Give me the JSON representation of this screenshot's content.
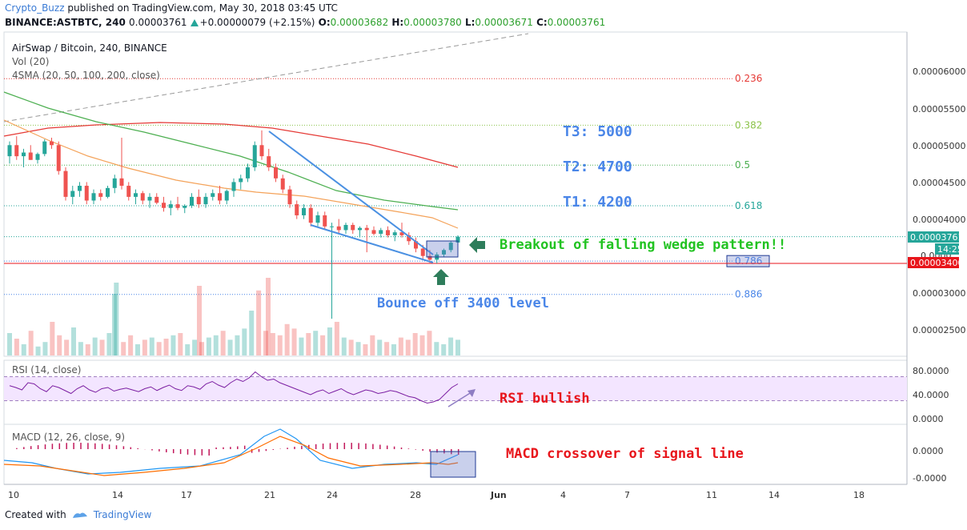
{
  "header": {
    "author": "Crypto_Buzz",
    "published": "published on TradingView.com, May 30, 2018 03:45 UTC",
    "symbol": "BINANCE:ASTBTC, 240",
    "last": "0.00003761",
    "change": "+0.00000079 (+2.15%)",
    "o_label": "O:",
    "o_val": "0.00003682",
    "h_label": "H:",
    "h_val": "0.00003780",
    "l_label": "L:",
    "l_val": "0.00003671",
    "c_label": "C:",
    "c_val": "0.00003761"
  },
  "footer": {
    "created_with": "Created with",
    "brand": "TradingView"
  },
  "colors": {
    "up": "#26a69a",
    "down": "#ef5350",
    "sma20": "#f4a259",
    "sma50": "#4caf50",
    "sma100": "#4caf50",
    "sma200": "#e53935",
    "wedge": "#4a90e2",
    "annotation_blue": "#4a86e8",
    "annotation_green": "#22c322",
    "annotation_red": "#e8151b",
    "arrow_green": "#2e7d5b",
    "rsi_band": "#f3e5ff",
    "rsi_line": "#7b1fa2",
    "macd_line": "#2196f3",
    "signal_line": "#ff6d00",
    "hist": "#c2185b"
  },
  "chart_data": {
    "type": "candlestick",
    "panes": {
      "main": {
        "legend": [
          "AirSwap / Bitcoin, 240, BINANCE",
          "Vol (20)",
          "4SMA (20, 50, 100, 200, close)"
        ],
        "y_ticks": [
          "0.00006000",
          "0.00005500",
          "0.00005000",
          "0.00004500",
          "0.00004000",
          "0.00003000",
          "0.00002500"
        ],
        "y_tick_values": [
          6e-05,
          5.5e-05,
          5e-05,
          4.5e-05,
          4e-05,
          3e-05,
          2.5e-05
        ],
        "last_price_label": "0.00003761",
        "last_price": 3.761e-05,
        "countdown": "14:25",
        "support_label": "0.00003400",
        "support_price": 3.4e-05,
        "hidden_tick": "0.0000",
        "fib_levels": [
          {
            "label": "0.236",
            "price": 5.9e-05,
            "color": "#e53935"
          },
          {
            "label": "0.382",
            "price": 5.27e-05,
            "color": "#8bc34a"
          },
          {
            "label": "0.5",
            "price": 4.73e-05,
            "color": "#4caf50"
          },
          {
            "label": "0.618",
            "price": 4.18e-05,
            "color": "#26a69a"
          },
          {
            "label": "0.786",
            "price": 3.43e-05,
            "color": "#4a86e8"
          },
          {
            "label": "0.886",
            "price": 2.98e-05,
            "color": "#4a86e8"
          }
        ],
        "targets": [
          "T3: 5000",
          "T2: 4700",
          "T1: 4200"
        ],
        "annotations": [
          "Breakout of falling wedge pattern!!",
          "Bounce off 3400 level"
        ]
      },
      "rsi": {
        "legend": "RSI (14, close)",
        "y_ticks": [
          "80.0000",
          "40.0000",
          "0.0000"
        ],
        "y_tick_values": [
          80,
          40,
          0
        ],
        "band": [
          70,
          30
        ],
        "annotation": "RSI bullish",
        "values": [
          55,
          52,
          48,
          60,
          58,
          50,
          45,
          55,
          52,
          47,
          42,
          50,
          55,
          48,
          44,
          50,
          52,
          46,
          49,
          51,
          48,
          45,
          50,
          53,
          47,
          52,
          56,
          50,
          47,
          55,
          53,
          49,
          58,
          62,
          56,
          52,
          60,
          66,
          62,
          68,
          78,
          70,
          64,
          66,
          60,
          56,
          52,
          48,
          44,
          40,
          45,
          48,
          42,
          46,
          50,
          44,
          40,
          44,
          48,
          46,
          42,
          44,
          47,
          45,
          41,
          37,
          35,
          30,
          26,
          28,
          32,
          42,
          52,
          58
        ]
      },
      "macd": {
        "legend": "MACD (12, 26, close, 9)",
        "y_ticks": [
          "0.0000",
          "-0.0000"
        ],
        "y_tick_values": [
          0,
          -1
        ],
        "annotation": "MACD crossover of signal line"
      }
    },
    "x_ticks": [
      "10",
      "14",
      "17",
      "21",
      "24",
      "28",
      "Jun",
      "4",
      "7",
      "11",
      "14",
      "18"
    ],
    "x_tick_days": [
      10,
      14,
      17,
      21,
      24,
      28,
      32,
      35,
      38,
      42,
      45,
      49
    ],
    "candles": [
      [
        4.85e-05,
        5.05e-05,
        4.75e-05,
        5e-05
      ],
      [
        5e-05,
        5.12e-05,
        4.8e-05,
        4.85e-05
      ],
      [
        4.85e-05,
        4.95e-05,
        4.7e-05,
        4.9e-05
      ],
      [
        4.9e-05,
        5e-05,
        4.8e-05,
        4.8e-05
      ],
      [
        4.8e-05,
        4.9e-05,
        4.75e-05,
        4.88e-05
      ],
      [
        4.88e-05,
        5.08e-05,
        4.85e-05,
        5.05e-05
      ],
      [
        5.05e-05,
        5.1e-05,
        4.95e-05,
        5e-05
      ],
      [
        5e-05,
        5.05e-05,
        4.6e-05,
        4.65e-05
      ],
      [
        4.65e-05,
        4.7e-05,
        4.25e-05,
        4.3e-05
      ],
      [
        4.3e-05,
        4.45e-05,
        4.2e-05,
        4.38e-05
      ],
      [
        4.38e-05,
        4.5e-05,
        4.3e-05,
        4.45e-05
      ],
      [
        4.45e-05,
        4.5e-05,
        4.2e-05,
        4.25e-05
      ],
      [
        4.25e-05,
        4.4e-05,
        4.2e-05,
        4.35e-05
      ],
      [
        4.35e-05,
        4.4e-05,
        4.25e-05,
        4.3e-05
      ],
      [
        4.3e-05,
        4.45e-05,
        4.28e-05,
        4.42e-05
      ],
      [
        4.42e-05,
        4.6e-05,
        4.35e-05,
        4.55e-05
      ],
      [
        4.55e-05,
        5.1e-05,
        4.4e-05,
        4.45e-05
      ],
      [
        4.45e-05,
        4.5e-05,
        4.25e-05,
        4.3e-05
      ],
      [
        4.3e-05,
        4.4e-05,
        4.2e-05,
        4.35e-05
      ],
      [
        4.35e-05,
        4.38e-05,
        4.2e-05,
        4.25e-05
      ],
      [
        4.25e-05,
        4.35e-05,
        4.15e-05,
        4.3e-05
      ],
      [
        4.3e-05,
        4.35e-05,
        4.2e-05,
        4.22e-05
      ],
      [
        4.22e-05,
        4.3e-05,
        4.1e-05,
        4.15e-05
      ],
      [
        4.15e-05,
        4.25e-05,
        4.05e-05,
        4.2e-05
      ],
      [
        4.2e-05,
        4.3e-05,
        4.12e-05,
        4.15e-05
      ],
      [
        4.15e-05,
        4.2e-05,
        4.08e-05,
        4.18e-05
      ],
      [
        4.18e-05,
        4.35e-05,
        4.15e-05,
        4.3e-05
      ],
      [
        4.3e-05,
        4.4e-05,
        4.15e-05,
        4.2e-05
      ],
      [
        4.2e-05,
        4.35e-05,
        4.15e-05,
        4.3e-05
      ],
      [
        4.3e-05,
        4.4e-05,
        4.25e-05,
        4.35e-05
      ],
      [
        4.35e-05,
        4.45e-05,
        4.2e-05,
        4.25e-05
      ],
      [
        4.25e-05,
        4.4e-05,
        4.2e-05,
        4.38e-05
      ],
      [
        4.38e-05,
        4.55e-05,
        4.3e-05,
        4.5e-05
      ],
      [
        4.5e-05,
        4.6e-05,
        4.4e-05,
        4.55e-05
      ],
      [
        4.55e-05,
        4.75e-05,
        4.5e-05,
        4.7e-05
      ],
      [
        4.7e-05,
        5.05e-05,
        4.65e-05,
        5e-05
      ],
      [
        5e-05,
        5.2e-05,
        4.8e-05,
        4.85e-05
      ],
      [
        4.85e-05,
        4.95e-05,
        4.65e-05,
        4.7e-05
      ],
      [
        4.7e-05,
        4.75e-05,
        4.5e-05,
        4.55e-05
      ],
      [
        4.55e-05,
        4.6e-05,
        4.35e-05,
        4.4e-05
      ],
      [
        4.4e-05,
        4.45e-05,
        4.15e-05,
        4.2e-05
      ],
      [
        4.2e-05,
        4.25e-05,
        4e-05,
        4.05e-05
      ],
      [
        4.05e-05,
        4.2e-05,
        4e-05,
        4.15e-05
      ],
      [
        4.15e-05,
        4.2e-05,
        3.9e-05,
        3.95e-05
      ],
      [
        3.95e-05,
        4.1e-05,
        3.9e-05,
        4.05e-05
      ],
      [
        4.05e-05,
        4.1e-05,
        3.85e-05,
        3.9e-05
      ],
      [
        3.9e-05,
        3.95e-05,
        2.65e-05,
        3.9e-05
      ],
      [
        3.9e-05,
        4e-05,
        3.8e-05,
        3.85e-05
      ],
      [
        3.85e-05,
        3.95e-05,
        3.8e-05,
        3.92e-05
      ],
      [
        3.92e-05,
        3.95e-05,
        3.8e-05,
        3.85e-05
      ],
      [
        3.85e-05,
        3.9e-05,
        3.75e-05,
        3.88e-05
      ],
      [
        3.88e-05,
        3.92e-05,
        3.55e-05,
        3.85e-05
      ],
      [
        3.85e-05,
        3.9e-05,
        3.78e-05,
        3.8e-05
      ],
      [
        3.8e-05,
        3.88e-05,
        3.75e-05,
        3.85e-05
      ],
      [
        3.85e-05,
        3.9e-05,
        3.75e-05,
        3.78e-05
      ],
      [
        3.78e-05,
        3.85e-05,
        3.7e-05,
        3.82e-05
      ],
      [
        3.82e-05,
        3.95e-05,
        3.75e-05,
        3.78e-05
      ],
      [
        3.78e-05,
        3.82e-05,
        3.65e-05,
        3.7e-05
      ],
      [
        3.7e-05,
        3.75e-05,
        3.55e-05,
        3.6e-05
      ],
      [
        3.6e-05,
        3.65e-05,
        3.45e-05,
        3.5e-05
      ],
      [
        3.5e-05,
        3.58e-05,
        3.4e-05,
        3.45e-05
      ],
      [
        3.45e-05,
        3.55e-05,
        3.4e-05,
        3.52e-05
      ],
      [
        3.52e-05,
        3.6e-05,
        3.48e-05,
        3.58e-05
      ],
      [
        3.58e-05,
        3.7e-05,
        3.55e-05,
        3.68e-05
      ],
      [
        3.682e-05,
        3.78e-05,
        3.671e-05,
        3.761e-05
      ]
    ]
  }
}
